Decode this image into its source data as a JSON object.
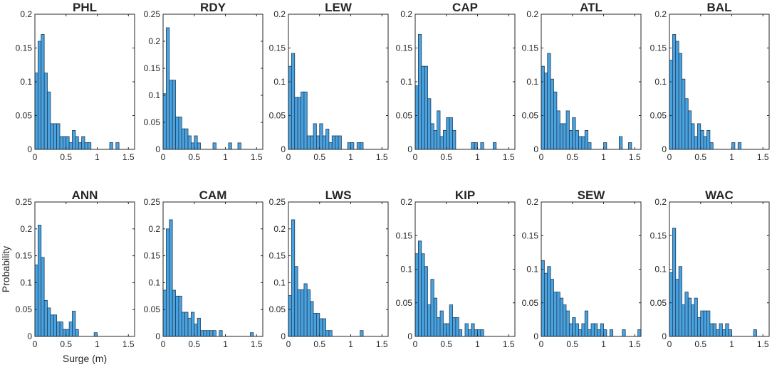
{
  "colors": {
    "bar_fill": "#4aa3df",
    "bar_stroke": "#1f3d5c",
    "axis": "#262626"
  },
  "chart_data": [
    {
      "type": "bar",
      "title": "PHL",
      "xlabel": "",
      "ylabel": "",
      "xlim": [
        0,
        1.6
      ],
      "ylim": [
        0,
        0.2
      ],
      "xticks": [
        {
          "v": 0,
          "label": "0"
        },
        {
          "v": 0.5,
          "label": "0.5"
        },
        {
          "v": 1,
          "label": "1"
        },
        {
          "v": 1.5,
          "label": "1.5"
        }
      ],
      "yticks": [
        {
          "v": 0,
          "label": "0"
        },
        {
          "v": 0.05,
          "label": "0.05"
        },
        {
          "v": 0.1,
          "label": "0.1"
        },
        {
          "v": 0.15,
          "label": "0.15"
        },
        {
          "v": 0.2,
          "label": "0.2"
        }
      ],
      "bin_width": 0.05,
      "values": [
        0.113,
        0.16,
        0.17,
        0.113,
        0.085,
        0.038,
        0.038,
        0.038,
        0.019,
        0.019,
        0.019,
        0.01,
        0.028,
        0.019,
        0.01,
        0.019,
        0.01,
        0.01,
        0,
        0,
        0,
        0,
        0,
        0,
        0.01,
        0,
        0.01,
        0,
        0,
        0,
        0,
        0
      ]
    },
    {
      "type": "bar",
      "title": "RDY",
      "xlabel": "",
      "ylabel": "",
      "xlim": [
        0,
        1.6
      ],
      "ylim": [
        0,
        0.25
      ],
      "xticks": [
        {
          "v": 0,
          "label": "0"
        },
        {
          "v": 0.5,
          "label": "0.5"
        },
        {
          "v": 1,
          "label": "1"
        },
        {
          "v": 1.5,
          "label": "1.5"
        }
      ],
      "yticks": [
        {
          "v": 0,
          "label": "0"
        },
        {
          "v": 0.05,
          "label": "0.05"
        },
        {
          "v": 0.1,
          "label": "0.1"
        },
        {
          "v": 0.15,
          "label": "0.15"
        },
        {
          "v": 0.2,
          "label": "0.2"
        },
        {
          "v": 0.25,
          "label": "0.25"
        }
      ],
      "bin_width": 0.05,
      "values": [
        0.103,
        0.225,
        0.128,
        0.128,
        0.06,
        0.06,
        0.038,
        0.038,
        0.025,
        0.012,
        0.025,
        0.012,
        0,
        0,
        0,
        0,
        0.012,
        0,
        0,
        0,
        0,
        0.012,
        0,
        0,
        0.012,
        0,
        0,
        0,
        0,
        0,
        0,
        0
      ]
    },
    {
      "type": "bar",
      "title": "LEW",
      "xlabel": "",
      "ylabel": "",
      "xlim": [
        0,
        1.6
      ],
      "ylim": [
        0,
        0.2
      ],
      "xticks": [
        {
          "v": 0,
          "label": "0"
        },
        {
          "v": 0.5,
          "label": "0.5"
        },
        {
          "v": 1,
          "label": "1"
        },
        {
          "v": 1.5,
          "label": "1.5"
        }
      ],
      "yticks": [
        {
          "v": 0,
          "label": "0"
        },
        {
          "v": 0.05,
          "label": "0.05"
        },
        {
          "v": 0.1,
          "label": "0.1"
        },
        {
          "v": 0.15,
          "label": "0.15"
        },
        {
          "v": 0.2,
          "label": "0.2"
        }
      ],
      "bin_width": 0.05,
      "values": [
        0.123,
        0.142,
        0.077,
        0.077,
        0.085,
        0.085,
        0.02,
        0.02,
        0.038,
        0.02,
        0.038,
        0.02,
        0.03,
        0.01,
        0.02,
        0.02,
        0.02,
        0,
        0,
        0.01,
        0.01,
        0,
        0.01,
        0.01,
        0,
        0,
        0,
        0,
        0,
        0,
        0,
        0
      ]
    },
    {
      "type": "bar",
      "title": "CAP",
      "xlabel": "",
      "ylabel": "",
      "xlim": [
        0,
        1.6
      ],
      "ylim": [
        0,
        0.2
      ],
      "xticks": [
        {
          "v": 0,
          "label": "0"
        },
        {
          "v": 0.5,
          "label": "0.5"
        },
        {
          "v": 1,
          "label": "1"
        },
        {
          "v": 1.5,
          "label": "1.5"
        }
      ],
      "yticks": [
        {
          "v": 0,
          "label": "0"
        },
        {
          "v": 0.05,
          "label": "0.05"
        },
        {
          "v": 0.1,
          "label": "0.1"
        },
        {
          "v": 0.15,
          "label": "0.15"
        },
        {
          "v": 0.2,
          "label": "0.2"
        }
      ],
      "bin_width": 0.05,
      "values": [
        0.094,
        0.17,
        0.123,
        0.123,
        0.075,
        0.038,
        0.028,
        0.057,
        0.019,
        0.028,
        0.047,
        0.047,
        0.028,
        0,
        0,
        0,
        0,
        0,
        0.01,
        0.01,
        0,
        0.01,
        0,
        0,
        0,
        0.01,
        0,
        0,
        0,
        0,
        0,
        0
      ]
    },
    {
      "type": "bar",
      "title": "ATL",
      "xlabel": "",
      "ylabel": "",
      "xlim": [
        0,
        1.6
      ],
      "ylim": [
        0,
        0.2
      ],
      "xticks": [
        {
          "v": 0,
          "label": "0"
        },
        {
          "v": 0.5,
          "label": "0.5"
        },
        {
          "v": 1,
          "label": "1"
        },
        {
          "v": 1.5,
          "label": "1.5"
        }
      ],
      "yticks": [
        {
          "v": 0,
          "label": "0"
        },
        {
          "v": 0.05,
          "label": "0.05"
        },
        {
          "v": 0.1,
          "label": "0.1"
        },
        {
          "v": 0.15,
          "label": "0.15"
        },
        {
          "v": 0.2,
          "label": "0.2"
        }
      ],
      "bin_width": 0.05,
      "values": [
        0.123,
        0.113,
        0.142,
        0.104,
        0.085,
        0.057,
        0.038,
        0.038,
        0.057,
        0.028,
        0.047,
        0.028,
        0.019,
        0.019,
        0.028,
        0.01,
        0,
        0,
        0,
        0,
        0.01,
        0,
        0,
        0,
        0,
        0.019,
        0,
        0,
        0.01,
        0,
        0,
        0
      ]
    },
    {
      "type": "bar",
      "title": "BAL",
      "xlabel": "",
      "ylabel": "",
      "xlim": [
        0,
        1.6
      ],
      "ylim": [
        0,
        0.2
      ],
      "xticks": [
        {
          "v": 0,
          "label": "0"
        },
        {
          "v": 0.5,
          "label": "0.5"
        },
        {
          "v": 1,
          "label": "1"
        },
        {
          "v": 1.5,
          "label": "1.5"
        }
      ],
      "yticks": [
        {
          "v": 0,
          "label": "0"
        },
        {
          "v": 0.05,
          "label": "0.05"
        },
        {
          "v": 0.1,
          "label": "0.1"
        },
        {
          "v": 0.15,
          "label": "0.15"
        },
        {
          "v": 0.2,
          "label": "0.2"
        }
      ],
      "bin_width": 0.05,
      "values": [
        0.132,
        0.17,
        0.16,
        0.142,
        0.104,
        0.075,
        0.057,
        0.038,
        0.019,
        0.038,
        0.028,
        0.019,
        0.028,
        0.01,
        0,
        0,
        0,
        0,
        0,
        0,
        0.01,
        0,
        0.01,
        0,
        0,
        0,
        0,
        0,
        0,
        0,
        0,
        0
      ]
    },
    {
      "type": "bar",
      "title": "ANN",
      "xlabel": "Surge (m)",
      "ylabel": "Probability",
      "xlim": [
        0,
        1.6
      ],
      "ylim": [
        0,
        0.25
      ],
      "xticks": [
        {
          "v": 0,
          "label": "0"
        },
        {
          "v": 0.5,
          "label": "0.5"
        },
        {
          "v": 1,
          "label": "1"
        },
        {
          "v": 1.5,
          "label": "1.5"
        }
      ],
      "yticks": [
        {
          "v": 0,
          "label": "0"
        },
        {
          "v": 0.05,
          "label": "0.05"
        },
        {
          "v": 0.1,
          "label": "0.1"
        },
        {
          "v": 0.15,
          "label": "0.15"
        },
        {
          "v": 0.2,
          "label": "0.2"
        },
        {
          "v": 0.25,
          "label": "0.25"
        }
      ],
      "bin_width": 0.05,
      "values": [
        0.133,
        0.207,
        0.147,
        0.067,
        0.053,
        0.04,
        0.04,
        0.027,
        0.027,
        0.013,
        0.013,
        0.027,
        0.047,
        0.013,
        0,
        0,
        0,
        0,
        0,
        0.007,
        0,
        0,
        0,
        0,
        0,
        0,
        0,
        0,
        0,
        0,
        0,
        0
      ]
    },
    {
      "type": "bar",
      "title": "CAM",
      "xlabel": "",
      "ylabel": "",
      "xlim": [
        0,
        1.6
      ],
      "ylim": [
        0,
        0.25
      ],
      "xticks": [
        {
          "v": 0,
          "label": "0"
        },
        {
          "v": 0.5,
          "label": "0.5"
        },
        {
          "v": 1,
          "label": "1"
        },
        {
          "v": 1.5,
          "label": "1.5"
        }
      ],
      "yticks": [
        {
          "v": 0,
          "label": "0"
        },
        {
          "v": 0.05,
          "label": "0.05"
        },
        {
          "v": 0.1,
          "label": "0.1"
        },
        {
          "v": 0.15,
          "label": "0.15"
        },
        {
          "v": 0.2,
          "label": "0.2"
        },
        {
          "v": 0.25,
          "label": "0.25"
        }
      ],
      "bin_width": 0.05,
      "values": [
        0.086,
        0.2,
        0.217,
        0.086,
        0.075,
        0.075,
        0.045,
        0.045,
        0.034,
        0.045,
        0.023,
        0.034,
        0.011,
        0.011,
        0.011,
        0.011,
        0.011,
        0,
        0.011,
        0,
        0,
        0,
        0,
        0,
        0,
        0,
        0,
        0,
        0.007,
        0,
        0,
        0
      ]
    },
    {
      "type": "bar",
      "title": "LWS",
      "xlabel": "",
      "ylabel": "",
      "xlim": [
        0,
        1.6
      ],
      "ylim": [
        0,
        0.25
      ],
      "xticks": [
        {
          "v": 0,
          "label": "0"
        },
        {
          "v": 0.5,
          "label": "0.5"
        },
        {
          "v": 1,
          "label": "1"
        },
        {
          "v": 1.5,
          "label": "1.5"
        }
      ],
      "yticks": [
        {
          "v": 0,
          "label": "0"
        },
        {
          "v": 0.05,
          "label": "0.05"
        },
        {
          "v": 0.1,
          "label": "0.1"
        },
        {
          "v": 0.15,
          "label": "0.15"
        },
        {
          "v": 0.2,
          "label": "0.2"
        },
        {
          "v": 0.25,
          "label": "0.25"
        }
      ],
      "bin_width": 0.05,
      "values": [
        0.076,
        0.217,
        0.13,
        0.087,
        0.087,
        0.098,
        0.087,
        0.065,
        0.043,
        0.043,
        0.033,
        0.033,
        0.011,
        0.011,
        0,
        0,
        0,
        0,
        0,
        0,
        0,
        0,
        0,
        0.011,
        0,
        0,
        0,
        0,
        0,
        0,
        0,
        0
      ]
    },
    {
      "type": "bar",
      "title": "KIP",
      "xlabel": "",
      "ylabel": "",
      "xlim": [
        0,
        1.6
      ],
      "ylim": [
        0,
        0.2
      ],
      "xticks": [
        {
          "v": 0,
          "label": "0"
        },
        {
          "v": 0.5,
          "label": "0.5"
        },
        {
          "v": 1,
          "label": "1"
        },
        {
          "v": 1.5,
          "label": "1.5"
        }
      ],
      "yticks": [
        {
          "v": 0,
          "label": "0"
        },
        {
          "v": 0.05,
          "label": "0.05"
        },
        {
          "v": 0.1,
          "label": "0.1"
        },
        {
          "v": 0.15,
          "label": "0.15"
        },
        {
          "v": 0.2,
          "label": "0.2"
        }
      ],
      "bin_width": 0.05,
      "values": [
        0.123,
        0.142,
        0.123,
        0.104,
        0.047,
        0.085,
        0.057,
        0.028,
        0.038,
        0.019,
        0.019,
        0.047,
        0.028,
        0.028,
        0.01,
        0,
        0.019,
        0.01,
        0.019,
        0.01,
        0.01,
        0.01,
        0,
        0,
        0,
        0,
        0,
        0,
        0,
        0,
        0,
        0
      ]
    },
    {
      "type": "bar",
      "title": "SEW",
      "xlabel": "",
      "ylabel": "",
      "xlim": [
        0,
        1.6
      ],
      "ylim": [
        0,
        0.2
      ],
      "xticks": [
        {
          "v": 0,
          "label": "0"
        },
        {
          "v": 0.5,
          "label": "0.5"
        },
        {
          "v": 1,
          "label": "1"
        },
        {
          "v": 1.5,
          "label": "1.5"
        }
      ],
      "yticks": [
        {
          "v": 0,
          "label": "0"
        },
        {
          "v": 0.05,
          "label": "0.05"
        },
        {
          "v": 0.1,
          "label": "0.1"
        },
        {
          "v": 0.15,
          "label": "0.15"
        },
        {
          "v": 0.2,
          "label": "0.2"
        }
      ],
      "bin_width": 0.05,
      "values": [
        0.113,
        0.094,
        0.104,
        0.085,
        0.066,
        0.066,
        0.057,
        0.047,
        0.038,
        0.019,
        0.028,
        0.019,
        0.01,
        0.019,
        0.038,
        0.01,
        0.019,
        0.019,
        0.01,
        0.019,
        0.01,
        0,
        0.01,
        0,
        0,
        0,
        0.01,
        0,
        0,
        0,
        0,
        0.01
      ]
    },
    {
      "type": "bar",
      "title": "WAC",
      "xlabel": "",
      "ylabel": "",
      "xlim": [
        0,
        1.6
      ],
      "ylim": [
        0,
        0.2
      ],
      "xticks": [
        {
          "v": 0,
          "label": "0"
        },
        {
          "v": 0.5,
          "label": "0.5"
        },
        {
          "v": 1,
          "label": "1"
        },
        {
          "v": 1.5,
          "label": "1.5"
        }
      ],
      "yticks": [
        {
          "v": 0,
          "label": "0"
        },
        {
          "v": 0.05,
          "label": "0.05"
        },
        {
          "v": 0.1,
          "label": "0.1"
        },
        {
          "v": 0.15,
          "label": "0.15"
        },
        {
          "v": 0.2,
          "label": "0.2"
        }
      ],
      "bin_width": 0.05,
      "values": [
        0.095,
        0.161,
        0.085,
        0.104,
        0.047,
        0.066,
        0.057,
        0.047,
        0.057,
        0.028,
        0.038,
        0.038,
        0.038,
        0.019,
        0.019,
        0.01,
        0.019,
        0.01,
        0.019,
        0.01,
        0,
        0,
        0,
        0,
        0,
        0,
        0,
        0.01,
        0,
        0,
        0,
        0
      ]
    }
  ]
}
